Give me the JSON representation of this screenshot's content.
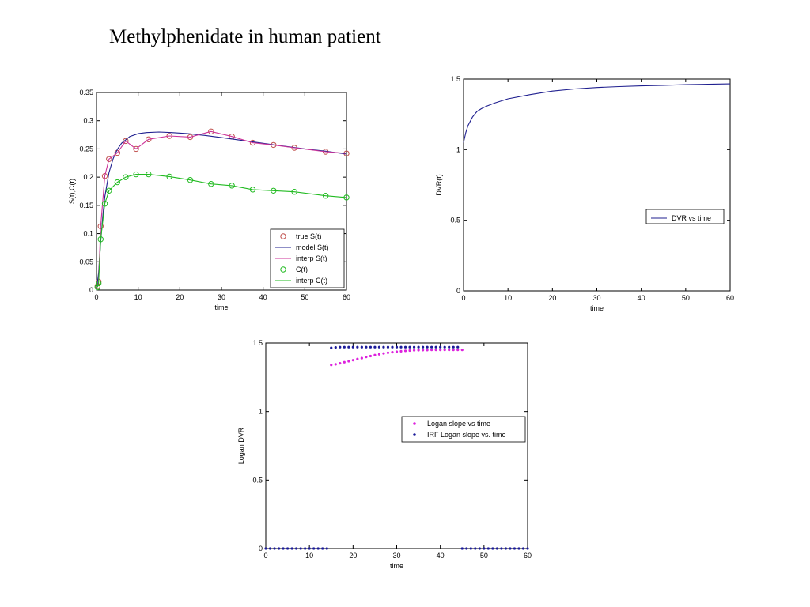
{
  "page": {
    "title": "Methylphenidate in human patient"
  },
  "chart_data": [
    {
      "type": "line",
      "xlabel": "time",
      "ylabel": "S(t),C(t)",
      "xlim": [
        0,
        60
      ],
      "ylim": [
        0,
        0.35
      ],
      "xticks": [
        0,
        10,
        20,
        30,
        40,
        50,
        60
      ],
      "yticks": [
        0,
        0.05,
        0.1,
        0.15,
        0.2,
        0.25,
        0.3,
        0.35
      ],
      "grid": false,
      "legend_position": "bottom-right",
      "legend": [
        "true S(t)",
        "model S(t)",
        "interp S(t)",
        "C(t)",
        "interp C(t)"
      ],
      "series": [
        {
          "name": "true S(t)",
          "style": "circles",
          "color": "#c0504d",
          "x": [
            0.25,
            0.5,
            1,
            2,
            3,
            5,
            7,
            9.5,
            12.5,
            17.5,
            22.5,
            27.5,
            32.5,
            37.5,
            42.5,
            47.5,
            55,
            60
          ],
          "y": [
            0.007,
            0.015,
            0.113,
            0.202,
            0.232,
            0.243,
            0.264,
            0.25,
            0.267,
            0.273,
            0.271,
            0.281,
            0.272,
            0.261,
            0.257,
            0.252,
            0.245,
            0.242
          ]
        },
        {
          "name": "model S(t)",
          "style": "line",
          "color": "#1f1f8f",
          "x": [
            0,
            0.5,
            1,
            1.5,
            2,
            3,
            4,
            5,
            6,
            8,
            10,
            12,
            15,
            18,
            22,
            26,
            30,
            35,
            40,
            45,
            50,
            55,
            60
          ],
          "y": [
            0,
            0.03,
            0.085,
            0.13,
            0.165,
            0.208,
            0.233,
            0.249,
            0.26,
            0.272,
            0.277,
            0.279,
            0.28,
            0.279,
            0.277,
            0.274,
            0.27,
            0.265,
            0.26,
            0.255,
            0.25,
            0.246,
            0.241
          ]
        },
        {
          "name": "interp S(t)",
          "style": "line",
          "color": "#cc3399",
          "x": [
            0.25,
            0.5,
            1,
            2,
            3,
            5,
            7,
            9.5,
            12.5,
            17.5,
            22.5,
            27.5,
            32.5,
            37.5,
            42.5,
            47.5,
            55,
            60
          ],
          "y": [
            0.007,
            0.015,
            0.113,
            0.202,
            0.232,
            0.243,
            0.264,
            0.25,
            0.267,
            0.273,
            0.271,
            0.281,
            0.272,
            0.261,
            0.257,
            0.252,
            0.245,
            0.242
          ]
        },
        {
          "name": "C(t)",
          "style": "circles",
          "color": "#22bb22",
          "x": [
            0.25,
            0.5,
            1,
            2,
            3,
            5,
            7,
            9.5,
            12.5,
            17.5,
            22.5,
            27.5,
            32.5,
            37.5,
            42.5,
            47.5,
            55,
            60
          ],
          "y": [
            0.005,
            0.012,
            0.09,
            0.153,
            0.176,
            0.191,
            0.2,
            0.205,
            0.205,
            0.201,
            0.195,
            0.188,
            0.185,
            0.178,
            0.176,
            0.174,
            0.167,
            0.164
          ]
        },
        {
          "name": "interp C(t)",
          "style": "line",
          "color": "#22bb22",
          "x": [
            0.25,
            0.5,
            1,
            2,
            3,
            5,
            7,
            9.5,
            12.5,
            17.5,
            22.5,
            27.5,
            32.5,
            37.5,
            42.5,
            47.5,
            55,
            60
          ],
          "y": [
            0.005,
            0.012,
            0.09,
            0.153,
            0.176,
            0.191,
            0.2,
            0.205,
            0.205,
            0.201,
            0.195,
            0.188,
            0.185,
            0.178,
            0.176,
            0.174,
            0.167,
            0.164
          ]
        }
      ]
    },
    {
      "type": "line",
      "xlabel": "time",
      "ylabel": "DVR(t)",
      "xlim": [
        0,
        60
      ],
      "ylim": [
        0,
        1.5
      ],
      "xticks": [
        0,
        10,
        20,
        30,
        40,
        50,
        60
      ],
      "yticks": [
        0,
        0.5,
        1,
        1.5
      ],
      "grid": false,
      "legend_position": "right",
      "legend": [
        "DVR vs time"
      ],
      "series": [
        {
          "name": "DVR vs time",
          "style": "line",
          "color": "#1f1f8f",
          "x": [
            0,
            0.5,
            1,
            2,
            3,
            4,
            5,
            7,
            10,
            15,
            20,
            25,
            30,
            35,
            40,
            45,
            50,
            55,
            60
          ],
          "y": [
            1.05,
            1.12,
            1.17,
            1.23,
            1.27,
            1.29,
            1.305,
            1.33,
            1.36,
            1.39,
            1.415,
            1.43,
            1.44,
            1.447,
            1.452,
            1.456,
            1.46,
            1.463,
            1.466
          ]
        }
      ]
    },
    {
      "type": "scatter",
      "xlabel": "time",
      "ylabel": "Logan DVR",
      "xlim": [
        0,
        60
      ],
      "ylim": [
        0,
        1.5
      ],
      "xticks": [
        0,
        10,
        20,
        30,
        40,
        50,
        60
      ],
      "yticks": [
        0,
        0.5,
        1,
        1.5
      ],
      "grid": false,
      "legend_position": "right",
      "legend": [
        "Logan slope vs time",
        "IRF Logan slope vs. time"
      ],
      "series": [
        {
          "name": "Logan slope vs time",
          "style": "points",
          "color": "#dd22dd",
          "x": [
            15,
            16,
            17,
            18,
            19,
            20,
            21,
            22,
            23,
            24,
            25,
            26,
            27,
            28,
            29,
            30,
            31,
            32,
            33,
            34,
            35,
            36,
            37,
            38,
            39,
            40,
            41,
            42,
            43,
            44,
            45
          ],
          "y": [
            1.34,
            1.345,
            1.352,
            1.36,
            1.367,
            1.375,
            1.383,
            1.39,
            1.398,
            1.405,
            1.412,
            1.418,
            1.424,
            1.429,
            1.433,
            1.437,
            1.44,
            1.443,
            1.445,
            1.447,
            1.448,
            1.449,
            1.449,
            1.45,
            1.45,
            1.45,
            1.45,
            1.45,
            1.45,
            1.45,
            1.45
          ]
        },
        {
          "name": "IRF Logan slope vs. time",
          "style": "points",
          "color": "#1a1a99",
          "x": [
            0,
            1,
            2,
            3,
            4,
            5,
            6,
            7,
            8,
            9,
            10,
            11,
            12,
            13,
            14,
            15,
            16,
            17,
            18,
            19,
            20,
            21,
            22,
            23,
            24,
            25,
            26,
            27,
            28,
            29,
            30,
            31,
            32,
            33,
            34,
            35,
            36,
            37,
            38,
            39,
            40,
            41,
            42,
            43,
            44,
            45,
            46,
            47,
            48,
            49,
            50,
            51,
            52,
            53,
            54,
            55,
            56,
            57,
            58,
            59,
            60
          ],
          "y": [
            0,
            0,
            0,
            0,
            0,
            0,
            0,
            0,
            0,
            0,
            0,
            0,
            0,
            0,
            0,
            1.465,
            1.468,
            1.47,
            1.47,
            1.47,
            1.47,
            1.47,
            1.47,
            1.47,
            1.47,
            1.47,
            1.47,
            1.47,
            1.47,
            1.47,
            1.47,
            1.47,
            1.47,
            1.47,
            1.47,
            1.47,
            1.47,
            1.47,
            1.47,
            1.47,
            1.47,
            1.47,
            1.47,
            1.47,
            1.47,
            0,
            0,
            0,
            0,
            0,
            0,
            0,
            0,
            0,
            0,
            0,
            0,
            0,
            0,
            0,
            0
          ]
        }
      ]
    }
  ]
}
